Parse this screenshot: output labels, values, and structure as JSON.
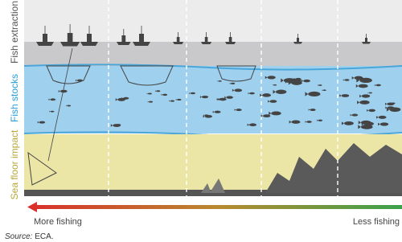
{
  "labels": {
    "extraction": "Fish extraction",
    "stocks": "Fish stocks",
    "seafloor": "Sea floor impact"
  },
  "scale": {
    "left": "More fishing",
    "right": "Less fishing"
  },
  "source": {
    "label": "Source:",
    "text": "ECA."
  }
}
